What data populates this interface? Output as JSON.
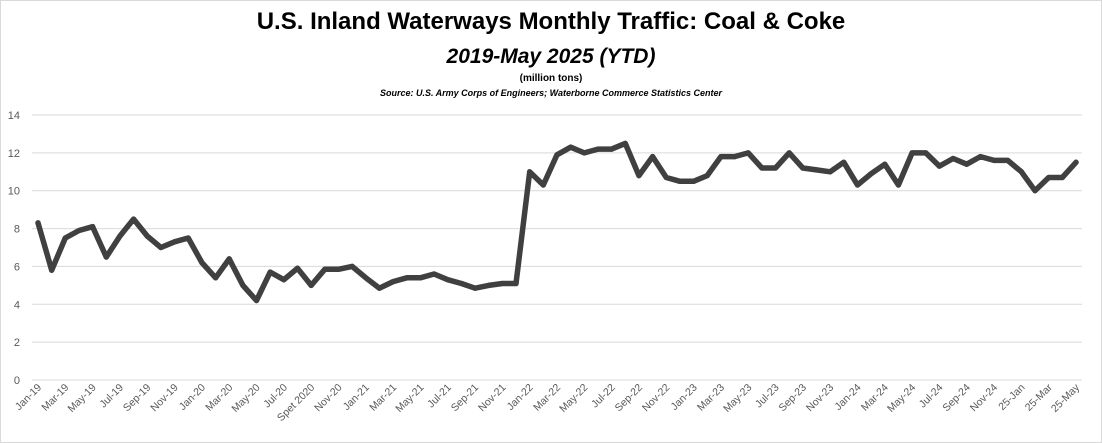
{
  "chart_data": {
    "type": "line",
    "title": "U.S. Inland Waterways Monthly Traffic:  Coal & Coke",
    "subtitle": "2019-May 2025 (YTD)",
    "unit_label": "(million tons)",
    "source": "Source:  U.S. Army Corps of Engineers; Waterborne Commerce Statistics Center",
    "xlabel": "",
    "ylabel": "",
    "ylim": [
      0,
      14
    ],
    "yticks": [
      0,
      2,
      4,
      6,
      8,
      10,
      12,
      14
    ],
    "grid": true,
    "legend": "none",
    "line_color": "#404040",
    "x_tick_labels": [
      "Jan-19",
      "Mar-19",
      "May-19",
      "Jul-19",
      "Sep-19",
      "Nov-19",
      "Jan-20",
      "Mar-20",
      "May-20",
      "Jul-20",
      "Spet 2020",
      "Nov-20",
      "Jan-21",
      "Mar-21",
      "May-21",
      "Jul-21",
      "Sep-21",
      "Nov-21",
      "Jan-22",
      "Mar-22",
      "May-22",
      "Jul-22",
      "Sep-22",
      "Nov-22",
      "Jan-23",
      "Mar-23",
      "May-23",
      "Jul-23",
      "Sep-23",
      "Nov-23",
      "Jan-24",
      "Mar-24",
      "May-24",
      "Jul-24",
      "Sep-24",
      "Nov-24",
      "25-Jan",
      "25-Mar",
      "25-May"
    ],
    "series": [
      {
        "values": [
          8.3,
          5.8,
          7.5,
          7.9,
          8.1,
          6.5,
          7.6,
          8.5,
          7.6,
          7.0,
          7.3,
          7.5,
          6.2,
          5.4,
          6.4,
          5.0,
          4.2,
          5.7,
          5.3,
          5.9,
          5.0,
          5.85,
          5.85,
          6.0,
          5.4,
          4.85,
          5.2,
          5.4,
          5.4,
          5.6,
          5.3,
          5.1,
          4.85,
          5.0,
          5.1,
          5.1,
          11.0,
          10.3,
          11.9,
          12.3,
          12.0,
          12.2,
          12.2,
          12.5,
          10.8,
          11.8,
          10.7,
          10.5,
          10.5,
          10.8,
          11.8,
          11.8,
          12.0,
          11.2,
          11.2,
          12.0,
          11.2,
          11.1,
          11.0,
          11.5,
          10.3,
          10.9,
          11.4,
          10.3,
          12.0,
          12.0,
          11.3,
          11.7,
          11.4,
          11.8,
          11.6,
          11.6,
          11.0,
          10.0,
          10.7,
          10.7,
          11.5
        ]
      }
    ]
  }
}
